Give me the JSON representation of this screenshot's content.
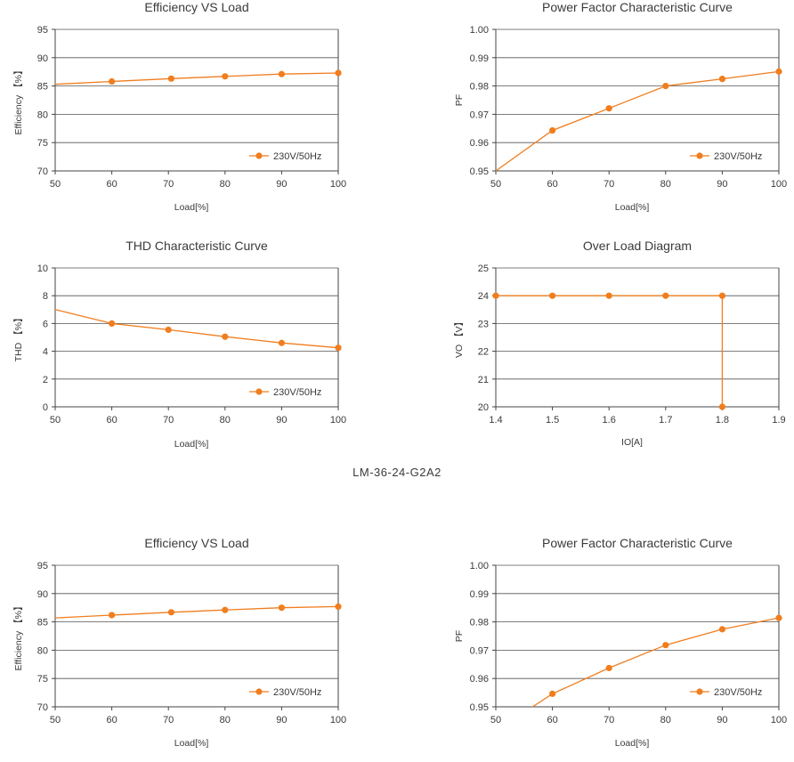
{
  "section_label": "LM-36-24-G2A2",
  "chart_data": [
    {
      "id": "eff1",
      "type": "line",
      "title": "Efficiency VS Load",
      "xlabel": "Load[%]",
      "ylabel": "Efficiency 【%】",
      "xlim": [
        50,
        100
      ],
      "ylim": [
        70,
        95
      ],
      "x_ticks": [
        50,
        60,
        70,
        80,
        90,
        100
      ],
      "y_ticks": [
        70,
        75,
        80,
        85,
        90,
        95
      ],
      "y_tick_labels": [
        "70",
        "75",
        "80",
        "85",
        "90",
        "95"
      ],
      "grid": "horizontal",
      "legend": "bottom-right",
      "color": "#f07d1e",
      "series": [
        {
          "name": "230V/50Hz",
          "line": [
            [
              50,
              85.3
            ],
            [
              60,
              85.8
            ],
            [
              70.5,
              86.3
            ],
            [
              80,
              86.7
            ],
            [
              90,
              87.1
            ],
            [
              100,
              87.3
            ]
          ],
          "markers": [
            [
              60,
              85.8
            ],
            [
              70.5,
              86.3
            ],
            [
              80,
              86.7
            ],
            [
              90,
              87.1
            ],
            [
              100,
              87.3
            ]
          ]
        }
      ]
    },
    {
      "id": "pf1",
      "type": "line",
      "title": "Power Factor Characteristic Curve",
      "xlabel": "Load[%]",
      "ylabel": "PF",
      "xlim": [
        50,
        100
      ],
      "ylim": [
        0.95,
        1.0
      ],
      "x_ticks": [
        50,
        60,
        70,
        80,
        90,
        100
      ],
      "y_ticks": [
        0.95,
        0.96,
        0.97,
        0.98,
        0.99,
        1.0
      ],
      "y_tick_labels": [
        "0.95",
        "0.96",
        "0.97",
        "0.98",
        "0.99",
        "1.00"
      ],
      "grid": "horizontal",
      "legend": "bottom-right",
      "color": "#f07d1e",
      "series": [
        {
          "name": "230V/50Hz",
          "line": [
            [
              50,
              0.95
            ],
            [
              60,
              0.9643
            ],
            [
              70,
              0.9721
            ],
            [
              80,
              0.98
            ],
            [
              90,
              0.9825
            ],
            [
              100,
              0.9851
            ]
          ],
          "markers": [
            [
              60,
              0.9643
            ],
            [
              70,
              0.9721
            ],
            [
              80,
              0.98
            ],
            [
              90,
              0.9825
            ],
            [
              100,
              0.9851
            ]
          ]
        }
      ]
    },
    {
      "id": "thd1",
      "type": "line",
      "title": "THD Characteristic Curve",
      "xlabel": "Load[%]",
      "ylabel": "THD 【%】",
      "xlim": [
        50,
        100
      ],
      "ylim": [
        0,
        10
      ],
      "x_ticks": [
        50,
        60,
        70,
        80,
        90,
        100
      ],
      "y_ticks": [
        0,
        2,
        4,
        6,
        8,
        10
      ],
      "y_tick_labels": [
        "0",
        "2",
        "4",
        "6",
        "8",
        "10"
      ],
      "grid": "horizontal",
      "legend": "bottom-right",
      "color": "#f07d1e",
      "series": [
        {
          "name": "230V/50Hz",
          "line": [
            [
              50,
              7.0
            ],
            [
              60,
              6.0
            ],
            [
              70,
              5.55
            ],
            [
              80,
              5.05
            ],
            [
              90,
              4.6
            ],
            [
              100,
              4.25
            ]
          ],
          "markers": [
            [
              60,
              6.0
            ],
            [
              70,
              5.55
            ],
            [
              80,
              5.05
            ],
            [
              90,
              4.6
            ],
            [
              100,
              4.25
            ]
          ]
        }
      ]
    },
    {
      "id": "ol1",
      "type": "line",
      "title": "Over Load Diagram",
      "xlabel": "IO[A]",
      "ylabel": "VO 【V】",
      "xlim": [
        1.4,
        1.9
      ],
      "ylim": [
        20,
        25
      ],
      "x_ticks": [
        1.4,
        1.5,
        1.6,
        1.7,
        1.8,
        1.9
      ],
      "y_ticks": [
        20,
        21,
        22,
        23,
        24,
        25
      ],
      "y_tick_labels": [
        "20",
        "21",
        "22",
        "23",
        "24",
        "25"
      ],
      "grid": "horizontal",
      "legend": "none",
      "color": "#f07d1e",
      "series": [
        {
          "line": [
            [
              1.4,
              24
            ],
            [
              1.5,
              24
            ],
            [
              1.6,
              24
            ],
            [
              1.7,
              24
            ],
            [
              1.8,
              24
            ],
            [
              1.8,
              20
            ]
          ],
          "markers": [
            [
              1.4,
              24
            ],
            [
              1.5,
              24
            ],
            [
              1.6,
              24
            ],
            [
              1.7,
              24
            ],
            [
              1.8,
              24
            ],
            [
              1.8,
              20
            ]
          ]
        }
      ]
    },
    {
      "id": "eff2",
      "type": "line",
      "title": "Efficiency VS Load",
      "xlabel": "Load[%]",
      "ylabel": "Efficiency 【%】",
      "xlim": [
        50,
        100
      ],
      "ylim": [
        70,
        95
      ],
      "x_ticks": [
        50,
        60,
        70,
        80,
        90,
        100
      ],
      "y_ticks": [
        70,
        75,
        80,
        85,
        90,
        95
      ],
      "y_tick_labels": [
        "70",
        "75",
        "80",
        "85",
        "90",
        "95"
      ],
      "grid": "horizontal",
      "legend": "bottom-right",
      "color": "#f07d1e",
      "series": [
        {
          "name": "230V/50Hz",
          "line": [
            [
              50,
              85.7
            ],
            [
              60,
              86.2
            ],
            [
              70.5,
              86.7
            ],
            [
              80,
              87.1
            ],
            [
              90,
              87.5
            ],
            [
              100,
              87.7
            ]
          ],
          "markers": [
            [
              60,
              86.2
            ],
            [
              70.5,
              86.7
            ],
            [
              80,
              87.1
            ],
            [
              90,
              87.5
            ],
            [
              100,
              87.7
            ]
          ]
        }
      ]
    },
    {
      "id": "pf2",
      "type": "line",
      "title": "Power Factor Characteristic Curve",
      "xlabel": "Load[%]",
      "ylabel": "PF",
      "xlim": [
        50,
        100
      ],
      "ylim": [
        0.95,
        1.0
      ],
      "x_ticks": [
        50,
        60,
        70,
        80,
        90,
        100
      ],
      "y_ticks": [
        0.95,
        0.96,
        0.97,
        0.98,
        0.99,
        1.0
      ],
      "y_tick_labels": [
        "0.95",
        "0.96",
        "0.97",
        "0.98",
        "0.99",
        "1.00"
      ],
      "grid": "horizontal",
      "legend": "bottom-right",
      "color": "#f07d1e",
      "series": [
        {
          "name": "230V/50Hz",
          "line": [
            [
              56.5,
              0.95
            ],
            [
              60,
              0.9546
            ],
            [
              70,
              0.9637
            ],
            [
              80,
              0.9718
            ],
            [
              90,
              0.9774
            ],
            [
              100,
              0.9814
            ]
          ],
          "markers": [
            [
              60,
              0.9546
            ],
            [
              70,
              0.9637
            ],
            [
              80,
              0.9718
            ],
            [
              90,
              0.9774
            ],
            [
              100,
              0.9814
            ]
          ]
        }
      ]
    }
  ]
}
